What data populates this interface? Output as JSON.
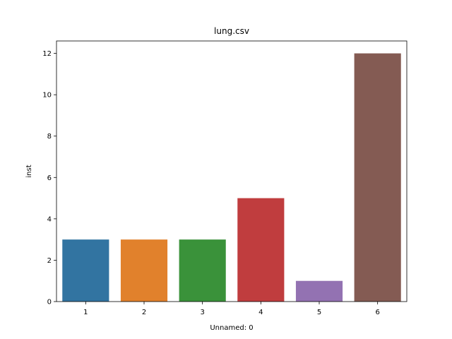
{
  "chart_data": {
    "type": "bar",
    "title": "lung.csv",
    "xlabel": "Unnamed: 0",
    "ylabel": "inst",
    "categories": [
      "1",
      "2",
      "3",
      "4",
      "5",
      "6"
    ],
    "values": [
      3,
      3,
      3,
      5,
      1,
      12
    ],
    "colors": [
      "#3274a1",
      "#e1812c",
      "#3a923a",
      "#c03d3e",
      "#9372b2",
      "#845b53"
    ],
    "ylim": [
      0,
      12.6
    ],
    "yticks": [
      0,
      2,
      4,
      6,
      8,
      10,
      12
    ],
    "grid": false,
    "legend": "none"
  }
}
